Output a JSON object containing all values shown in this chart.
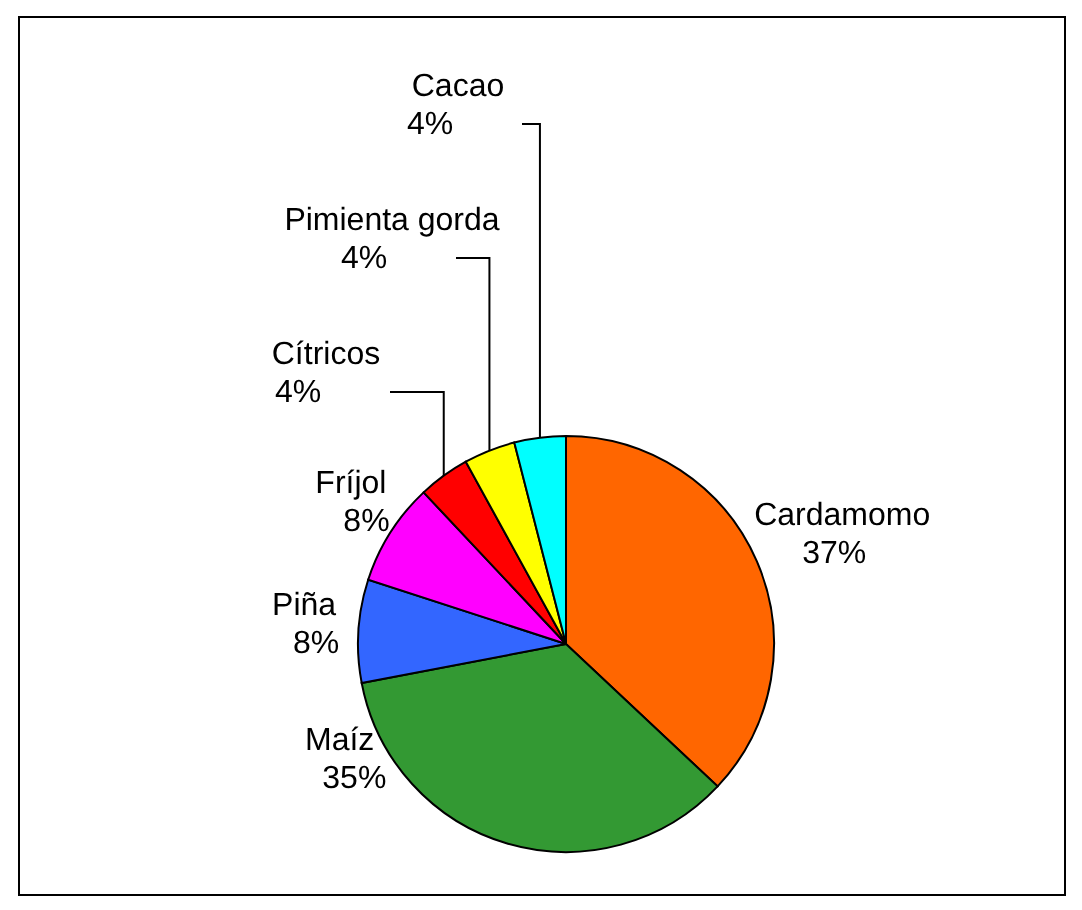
{
  "chart_data": {
    "type": "pie",
    "categories": [
      "Cardamomo",
      "Maíz",
      "Piña",
      "Fríjol",
      "Cítricos",
      "Pimienta gorda",
      "Cacao"
    ],
    "values": [
      37,
      35,
      8,
      8,
      4,
      4,
      4
    ],
    "value_labels": [
      "37%",
      "35%",
      "8%",
      "8%",
      "4%",
      "4%",
      "4%"
    ],
    "colors": [
      "#ff6600",
      "#339933",
      "#3366ff",
      "#ff00ff",
      "#ff0000",
      "#ffff00",
      "#00ffff"
    ]
  }
}
